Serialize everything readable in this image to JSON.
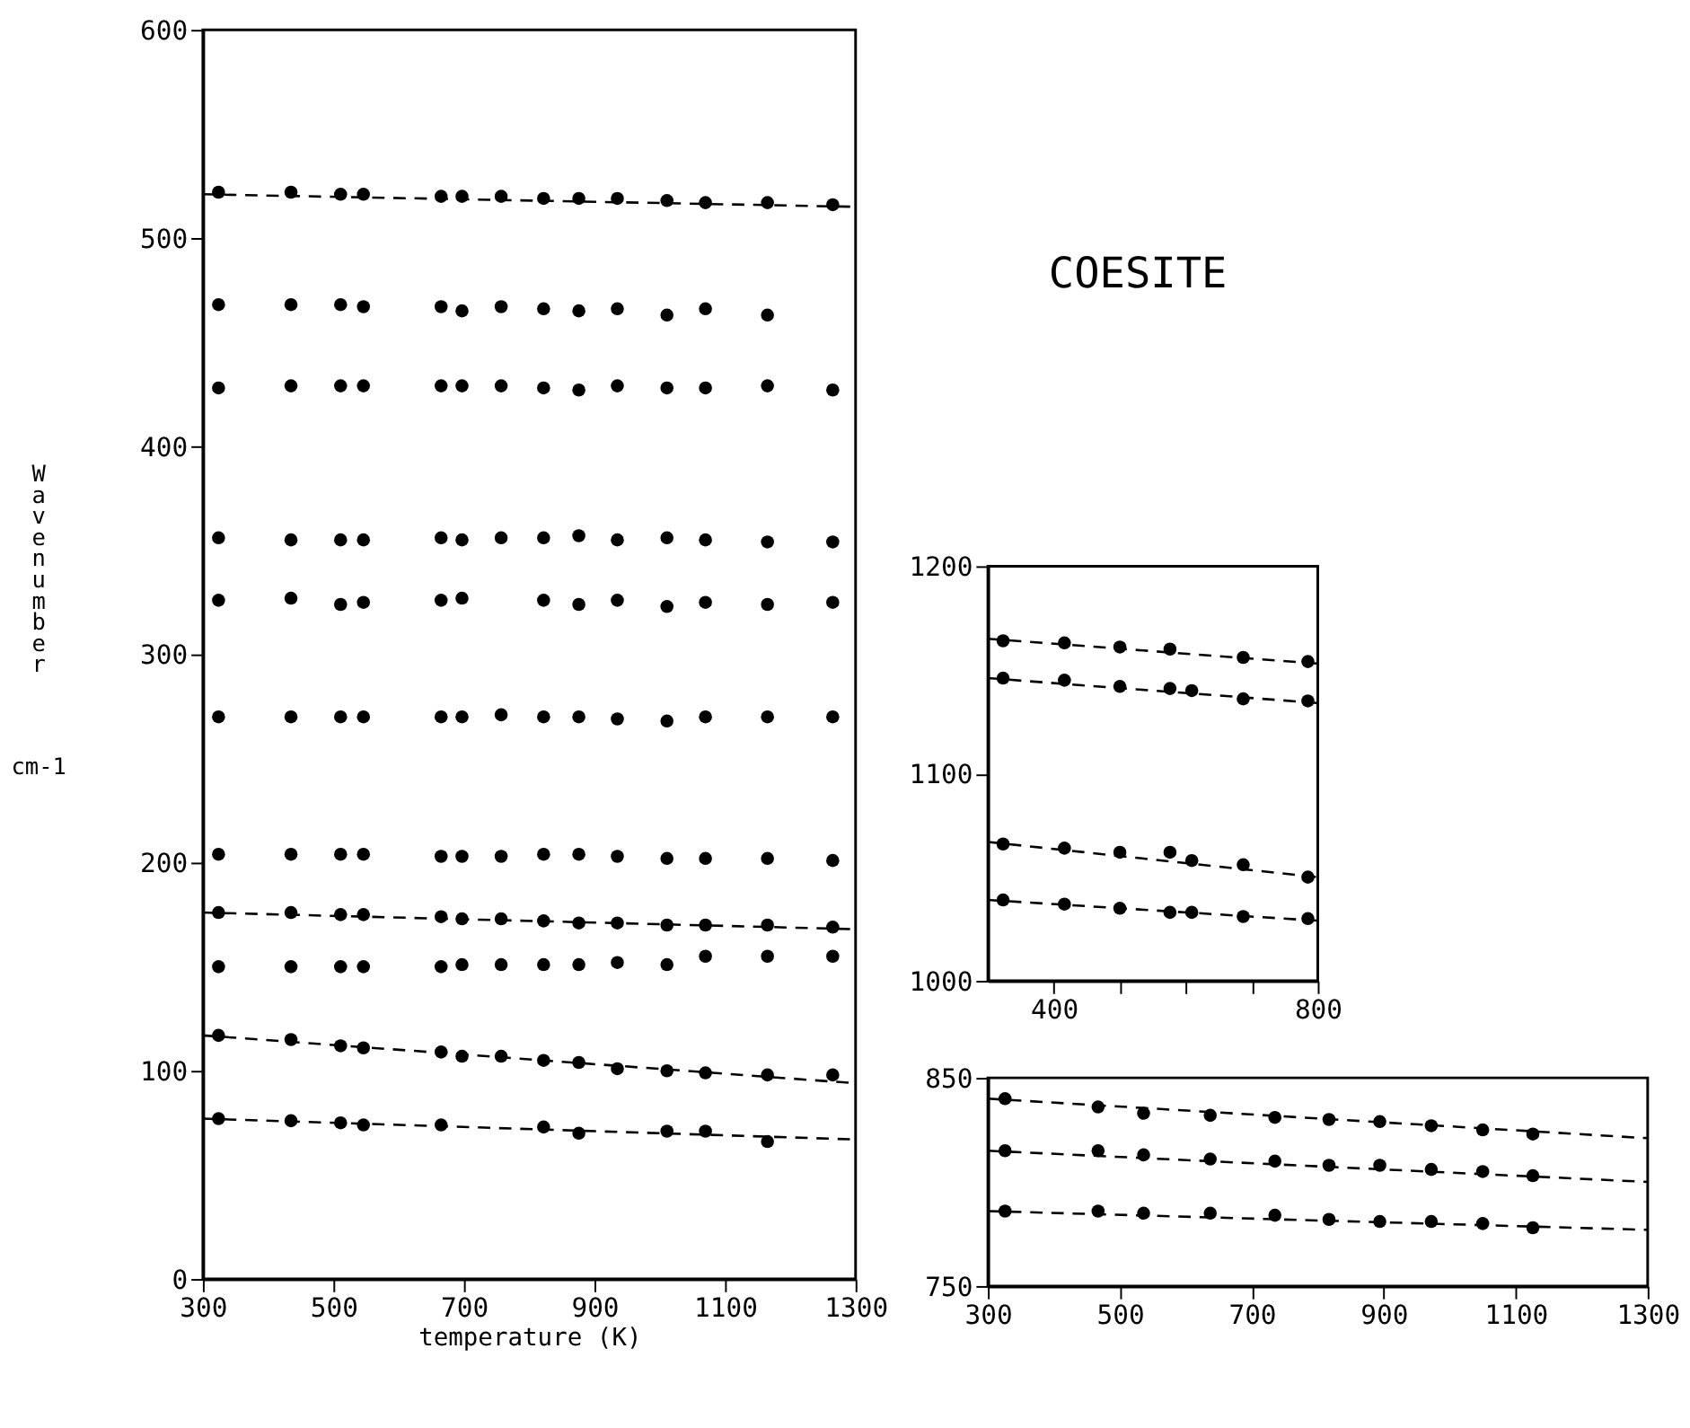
{
  "chart_data": [
    {
      "type": "scatter",
      "xlabel": "temperature (K)",
      "ylabel": "Wavenumber",
      "annotations": [
        "cm-1"
      ],
      "x": [
        324,
        435,
        511,
        546,
        665,
        697,
        757,
        822,
        876,
        935,
        1011,
        1070,
        1165,
        1265
      ],
      "xlim": [
        300,
        1300
      ],
      "ylim": [
        0,
        600
      ],
      "xticks": [
        300,
        500,
        700,
        900,
        1100,
        1300
      ],
      "yticks": [
        0,
        100,
        200,
        300,
        400,
        500,
        600
      ],
      "marker": "circle",
      "grid": false,
      "series": [
        {
          "color": "#000000",
          "values": [
            522,
            522,
            521,
            521,
            520,
            520,
            520,
            519,
            519,
            519,
            518,
            517,
            517,
            516
          ]
        },
        {
          "color": "#000000",
          "values": [
            468,
            468,
            468,
            467,
            467,
            465,
            467,
            466,
            465,
            466,
            463,
            466,
            463,
            null
          ]
        },
        {
          "color": "#000000",
          "values": [
            428,
            429,
            429,
            429,
            429,
            429,
            429,
            428,
            427,
            429,
            428,
            428,
            429,
            427
          ]
        },
        {
          "color": "#000000",
          "values": [
            356,
            355,
            355,
            355,
            356,
            355,
            356,
            356,
            357,
            355,
            356,
            355,
            354,
            354
          ]
        },
        {
          "color": "#000000",
          "values": [
            326,
            327,
            324,
            325,
            326,
            327,
            null,
            326,
            324,
            326,
            323,
            325,
            324,
            325
          ]
        },
        {
          "color": "#000000",
          "values": [
            270,
            270,
            270,
            270,
            270,
            270,
            271,
            270,
            270,
            269,
            268,
            270,
            270,
            270
          ]
        },
        {
          "color": "#000000",
          "values": [
            204,
            204,
            204,
            204,
            203,
            203,
            203,
            204,
            204,
            203,
            202,
            202,
            202,
            201
          ]
        },
        {
          "color": "#000000",
          "values": [
            176,
            176,
            175,
            175,
            174,
            173,
            173,
            172,
            171,
            171,
            170,
            170,
            170,
            169
          ]
        },
        {
          "color": "#000000",
          "values": [
            150,
            150,
            150,
            150,
            150,
            151,
            151,
            151,
            151,
            152,
            151,
            155,
            155,
            155
          ]
        },
        {
          "color": "#000000",
          "values": [
            117,
            115,
            112,
            111,
            109,
            107,
            107,
            105,
            104,
            101,
            100,
            99,
            98,
            98
          ]
        },
        {
          "color": "#000000",
          "values": [
            77,
            76,
            75,
            74,
            74,
            null,
            null,
            73,
            70,
            null,
            71,
            71,
            66,
            null
          ]
        },
        {
          "type": "line",
          "color": "#000000",
          "x": [
            300,
            1300
          ],
          "values": [
            521,
            515
          ],
          "line_style": "dashed",
          "marker": "none"
        },
        {
          "type": "line",
          "color": "#000000",
          "x": [
            300,
            1300
          ],
          "values": [
            176,
            168
          ],
          "line_style": "dashed",
          "marker": "none"
        },
        {
          "type": "line",
          "color": "#000000",
          "x": [
            300,
            1300
          ],
          "values": [
            117,
            94
          ],
          "line_style": "dashed",
          "marker": "none"
        },
        {
          "type": "line",
          "color": "#000000",
          "x": [
            300,
            1300
          ],
          "values": [
            77,
            67
          ],
          "line_style": "dashed",
          "marker": "none"
        }
      ]
    },
    {
      "type": "scatter",
      "title": "COESITE",
      "xlim": [
        300,
        800
      ],
      "ylim": [
        1000,
        1200
      ],
      "xticks": [
        400,
        {
          "value": 500,
          "label": null
        },
        {
          "value": 600,
          "label": null
        },
        {
          "value": 700,
          "label": null
        },
        800
      ],
      "yticks": [
        1000,
        1100,
        1200
      ],
      "marker": "circle",
      "grid": false,
      "series": [
        {
          "color": "#000000",
          "x": [
            323,
            416,
            500,
            576,
            687,
            785
          ],
          "values": [
            1164,
            1163,
            1161,
            1160,
            1156,
            1154
          ]
        },
        {
          "color": "#000000",
          "x": [
            323,
            416,
            500,
            576,
            609,
            687,
            785
          ],
          "values": [
            1146,
            1145,
            1142,
            1141,
            1140,
            1136,
            1135
          ]
        },
        {
          "color": "#000000",
          "x": [
            323,
            416,
            500,
            576,
            609,
            687,
            785
          ],
          "values": [
            1066,
            1064,
            1062,
            1062,
            1058,
            1056,
            1050
          ]
        },
        {
          "color": "#000000",
          "x": [
            323,
            416,
            500,
            576,
            609,
            687,
            785
          ],
          "values": [
            1039,
            1037,
            1035,
            1033,
            1033,
            1031,
            1030
          ]
        },
        {
          "type": "line",
          "color": "#000000",
          "x": [
            300,
            800
          ],
          "values": [
            1165,
            1153
          ],
          "line_style": "dashed",
          "marker": "none"
        },
        {
          "type": "line",
          "color": "#000000",
          "x": [
            300,
            800
          ],
          "values": [
            1146,
            1134
          ],
          "line_style": "dashed",
          "marker": "none"
        },
        {
          "type": "line",
          "color": "#000000",
          "x": [
            300,
            800
          ],
          "values": [
            1067,
            1050
          ],
          "line_style": "dashed",
          "marker": "none"
        },
        {
          "type": "line",
          "color": "#000000",
          "x": [
            300,
            800
          ],
          "values": [
            1039,
            1029
          ],
          "line_style": "dashed",
          "marker": "none"
        }
      ]
    },
    {
      "type": "scatter",
      "x": [
        326,
        467,
        536,
        637,
        735,
        817,
        894,
        972,
        1050,
        1126
      ],
      "xlim": [
        300,
        1300
      ],
      "ylim": [
        750,
        850
      ],
      "xticks": [
        300,
        500,
        700,
        900,
        1100,
        1300
      ],
      "yticks": [
        750,
        850
      ],
      "marker": "circle",
      "grid": false,
      "series": [
        {
          "color": "#000000",
          "values": [
            840,
            836,
            833,
            832,
            831,
            830,
            829,
            827,
            825,
            823
          ]
        },
        {
          "color": "#000000",
          "values": [
            815,
            815,
            813,
            811,
            810,
            808,
            808,
            806,
            805,
            803
          ]
        },
        {
          "color": "#000000",
          "values": [
            786,
            786,
            785,
            785,
            784,
            782,
            781,
            781,
            780,
            778
          ]
        },
        {
          "type": "line",
          "color": "#000000",
          "x": [
            300,
            1300
          ],
          "values": [
            840,
            821
          ],
          "line_style": "dashed",
          "marker": "none"
        },
        {
          "type": "line",
          "color": "#000000",
          "x": [
            300,
            1300
          ],
          "values": [
            815,
            800
          ],
          "line_style": "dashed",
          "marker": "none"
        },
        {
          "type": "line",
          "color": "#000000",
          "x": [
            300,
            1300
          ],
          "values": [
            786,
            777
          ],
          "line_style": "dashed",
          "marker": "none"
        }
      ]
    }
  ]
}
